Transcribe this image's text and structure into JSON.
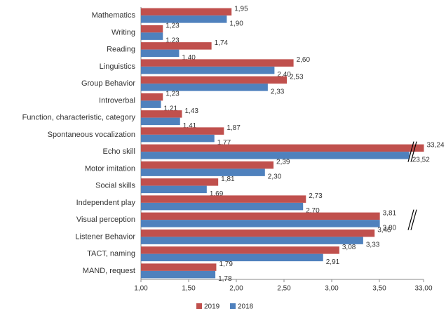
{
  "chart_data": {
    "type": "bar",
    "orientation": "horizontal",
    "categories": [
      "Mathematics",
      "Writing",
      "Reading",
      "Linguistics",
      "Group Behavior",
      "Introverbal",
      "Function, characteristic, category",
      "Spontaneous vocalization",
      "Echo skill",
      "Motor imitation",
      "Social skills",
      "Independent play",
      "Visual perception",
      "Listener Behavior",
      "TACT, naming",
      "MAND, request"
    ],
    "series": [
      {
        "name": "2019",
        "color": "#c0504d",
        "values": [
          1.95,
          1.23,
          1.74,
          2.6,
          2.53,
          1.23,
          1.43,
          1.87,
          33.24,
          2.39,
          1.81,
          2.73,
          3.81,
          3.45,
          3.08,
          1.79
        ],
        "value_labels": [
          "1,95",
          "1,23",
          "1,74",
          "2,60",
          "2,53",
          "1,23",
          "1,43",
          "1,87",
          "33,24",
          "2,39",
          "1,81",
          "2,73",
          "3,81",
          "3,45",
          "3,08",
          "1,79"
        ]
      },
      {
        "name": "2018",
        "color": "#4f81bd",
        "values": [
          1.9,
          1.23,
          1.4,
          2.4,
          2.33,
          1.21,
          1.41,
          1.77,
          23.52,
          2.3,
          1.69,
          2.7,
          3.8,
          3.33,
          2.91,
          1.78
        ],
        "value_labels": [
          "1,90",
          "1,23",
          "1,40",
          "2,40",
          "2,33",
          "1,21",
          "1,41",
          "1,77",
          "23,52",
          "2,30",
          "1,69",
          "2,70",
          "3,80",
          "3,33",
          "2,91",
          "1,78"
        ]
      }
    ],
    "xlim": [
      1,
      33
    ],
    "xticks": [
      {
        "value": 1,
        "label": "1,00"
      },
      {
        "value": 1.5,
        "label": "1,50"
      },
      {
        "value": 2,
        "label": "2,00"
      },
      {
        "value": 2.5,
        "label": "2,50"
      },
      {
        "value": 3,
        "label": "3,00"
      },
      {
        "value": 3.5,
        "label": "3,50"
      },
      {
        "value": 33,
        "label": "33,00"
      }
    ],
    "axis_break": true,
    "grid": false,
    "legend": "bottom"
  }
}
